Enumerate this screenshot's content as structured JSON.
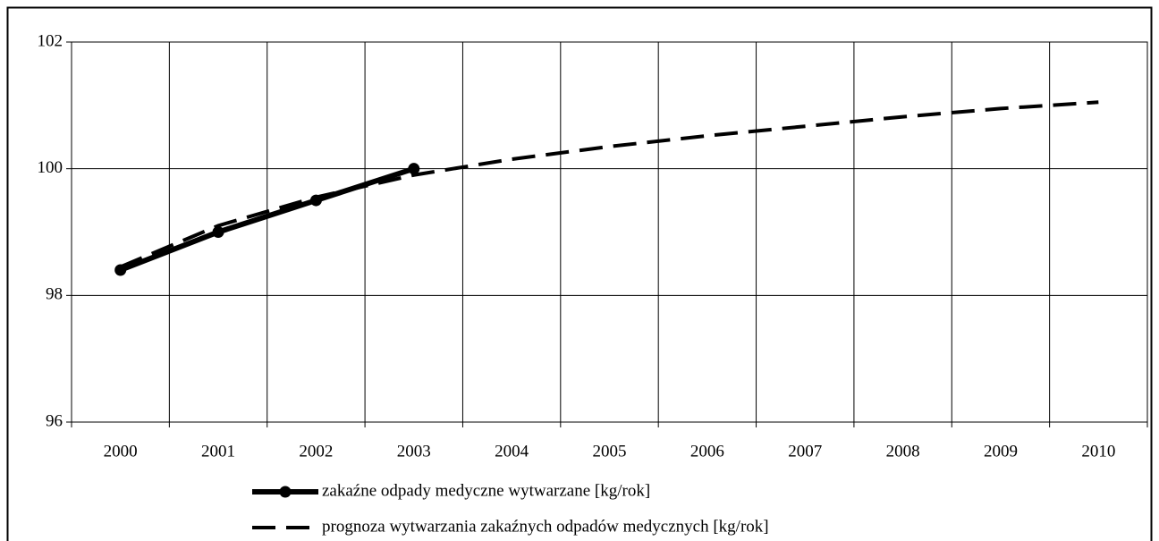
{
  "chart_data": {
    "type": "line",
    "categories": [
      "2000",
      "2001",
      "2002",
      "2003",
      "2004",
      "2005",
      "2006",
      "2007",
      "2008",
      "2009",
      "2010"
    ],
    "series": [
      {
        "name": "zakaźne odpady medyczne wytwarzane [kg/rok]",
        "color": "#000000",
        "style": "solid",
        "markers": true,
        "values": [
          98.4,
          99.0,
          99.5,
          100.0,
          null,
          null,
          null,
          null,
          null,
          null,
          null
        ]
      },
      {
        "name": "prognoza wytwarzania zakaźnych odpadów medycznych [kg/rok]",
        "color": "#000000",
        "style": "dashed",
        "markers": false,
        "values": [
          98.45,
          99.1,
          99.55,
          99.9,
          100.15,
          100.35,
          100.52,
          100.67,
          100.82,
          100.95,
          101.05
        ]
      }
    ],
    "ylim": [
      96,
      102
    ],
    "yticks": [
      96,
      98,
      100,
      102
    ],
    "grid": true,
    "legend": "bottom"
  }
}
